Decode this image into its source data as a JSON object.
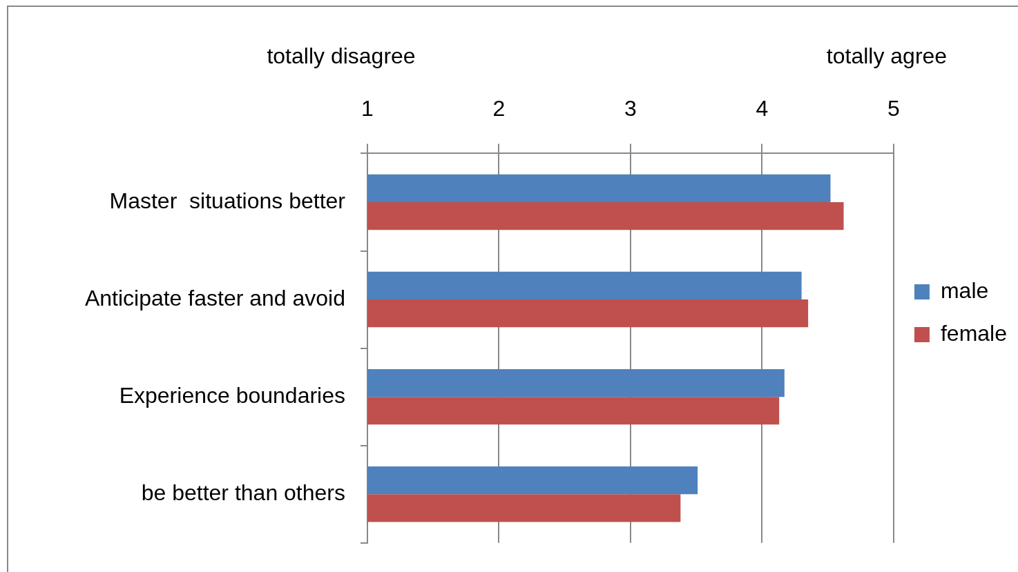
{
  "chart_data": {
    "type": "bar",
    "orientation": "horizontal",
    "categories": [
      "Master  situations better",
      "Anticipate faster and avoid",
      "Experience boundaries",
      "be better than others"
    ],
    "series": [
      {
        "name": "male",
        "color": "#4f81bd",
        "values": [
          4.52,
          4.3,
          4.17,
          3.51
        ]
      },
      {
        "name": "female",
        "color": "#c0504d",
        "values": [
          4.62,
          4.35,
          4.13,
          3.38
        ]
      }
    ],
    "xlim": [
      1,
      5
    ],
    "xticks": [
      1,
      2,
      3,
      4,
      5
    ],
    "grid": "x",
    "legend": "right",
    "annotations": [
      "totally disagree",
      "totally agree"
    ]
  }
}
